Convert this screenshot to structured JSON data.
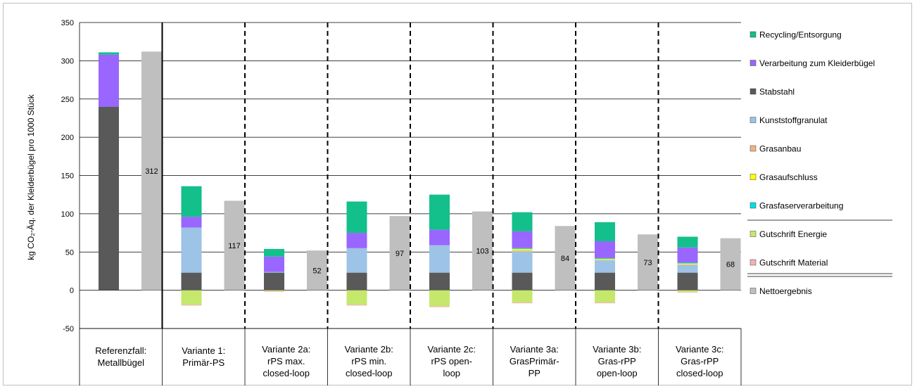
{
  "chart_data": {
    "type": "bar",
    "stacked": true,
    "ylabel": "kg CO₂-Äq. der Kleiderbügel pro 1000 Stück",
    "ylim": [
      -50,
      350
    ],
    "yticks": [
      -50,
      0,
      50,
      100,
      150,
      200,
      250,
      300,
      350
    ],
    "grid": true,
    "legend_position": "right",
    "categories": [
      [
        "Referenzfall:",
        "Metallbügel"
      ],
      [
        "Variante 1:",
        "Primär-PS"
      ],
      [
        "Variante 2a:",
        "rPS max.",
        "closed-loop"
      ],
      [
        "Variante 2b:",
        "rPS min.",
        "closed-loop"
      ],
      [
        "Variante 2c:",
        "rPS open-",
        "loop"
      ],
      [
        "Variante 3a:",
        "GrasPrimär-",
        "PP"
      ],
      [
        "Variante 3b:",
        "Gras-rPP",
        "open-loop"
      ],
      [
        "Variante 3c:",
        "Gras-rPP",
        "closed-loop"
      ]
    ],
    "series": [
      {
        "name": "Stabstahl",
        "color": "#595959",
        "values": [
          240,
          23,
          23,
          23,
          23,
          23,
          23,
          23
        ]
      },
      {
        "name": "Kunststoffgranulat",
        "color": "#9dc3e6",
        "values": [
          0,
          59,
          1,
          32,
          36,
          28,
          16,
          10
        ]
      },
      {
        "name": "Grasanbau",
        "color": "#f4b183",
        "values": [
          0,
          0,
          0,
          0,
          0,
          1,
          1,
          1
        ]
      },
      {
        "name": "Grasaufschluss",
        "color": "#ffff00",
        "values": [
          0,
          0,
          0,
          0,
          0,
          2,
          1,
          1
        ]
      },
      {
        "name": "Grasfaserverarbeitung",
        "color": "#00e0e0",
        "values": [
          0,
          0,
          0,
          0,
          0,
          1,
          1,
          1
        ]
      },
      {
        "name": "Verarbeitung zum Kleiderbügel",
        "color": "#9966ff",
        "values": [
          68,
          14,
          20,
          20,
          20,
          22,
          22,
          20
        ]
      },
      {
        "name": "Recycling/Entsorgung",
        "color": "#13bf8a",
        "values": [
          3,
          40,
          10,
          41,
          46,
          25,
          25,
          14
        ]
      }
    ],
    "credits": [
      {
        "name": "Gutschrift Energie",
        "color": "#c5e86c",
        "values": [
          0,
          -19,
          -1,
          -19,
          -21,
          -16,
          -16,
          -2
        ]
      },
      {
        "name": "Gutschrift Material",
        "color": "#f2b3b3",
        "values": [
          0,
          -1,
          -1,
          -1,
          -1,
          -1,
          -1,
          -1
        ]
      }
    ],
    "net": {
      "name": "Nettoergebnis",
      "color": "#bfbfbf",
      "values": [
        312,
        117,
        52,
        97,
        103,
        84,
        73,
        68
      ]
    },
    "legend_order": [
      "Recycling/Entsorgung",
      "Verarbeitung zum Kleiderbügel",
      "Stabstahl",
      "Kunststoffgranulat",
      "Grasanbau",
      "Grasaufschluss",
      "Grasfaserverarbeitung",
      "Gutschrift Energie",
      "Gutschrift Material",
      "Nettoergebnis"
    ]
  }
}
